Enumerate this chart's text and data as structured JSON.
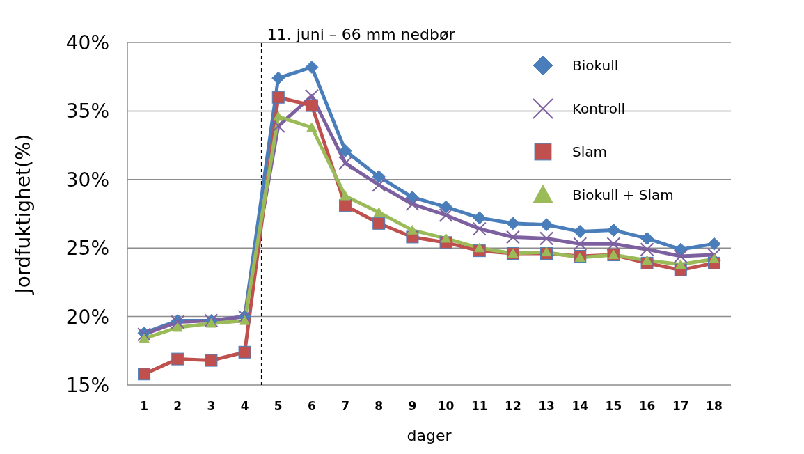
{
  "chart_data": {
    "type": "line",
    "xlabel": "dager",
    "ylabel": "Jordfuktighet(%)",
    "x": [
      1,
      2,
      3,
      4,
      5,
      6,
      7,
      8,
      9,
      10,
      11,
      12,
      13,
      14,
      15,
      16,
      17,
      18
    ],
    "xlim": [
      0.5,
      18.5
    ],
    "xticks": [
      1,
      2,
      3,
      4,
      5,
      6,
      7,
      8,
      9,
      10,
      11,
      12,
      13,
      14,
      15,
      16,
      17,
      18
    ],
    "ylim": [
      15,
      40
    ],
    "yticks": [
      {
        "value": 15,
        "label": "15%"
      },
      {
        "value": 20,
        "label": "20%"
      },
      {
        "value": 25,
        "label": "25%"
      },
      {
        "value": 30,
        "label": "30%"
      },
      {
        "value": 35,
        "label": "35%"
      },
      {
        "value": 40,
        "label": "40%"
      }
    ],
    "grid": "y",
    "legend": "top right",
    "ref_lines": [
      {
        "axis": "x",
        "value": 4.5,
        "label": "11. juni – 66 mm nedbør",
        "color": "#000000",
        "line_style": "dashed"
      }
    ],
    "series": [
      {
        "name": "Biokull",
        "color": "#4a7ebb",
        "marker": "diamond",
        "values": [
          18.8,
          19.7,
          19.7,
          20.0,
          37.4,
          38.2,
          32.1,
          30.2,
          28.7,
          28.0,
          27.2,
          26.8,
          26.7,
          26.2,
          26.3,
          25.7,
          24.9,
          25.3
        ]
      },
      {
        "name": "Kontroll",
        "color": "#7d60a0",
        "marker": "cross",
        "values": [
          18.7,
          19.6,
          19.7,
          20.0,
          33.9,
          36.1,
          31.2,
          29.6,
          28.2,
          27.4,
          26.4,
          25.8,
          25.7,
          25.3,
          25.3,
          24.9,
          24.4,
          24.5
        ]
      },
      {
        "name": "Slam",
        "color": "#c0504d",
        "marker": "square",
        "values": [
          15.8,
          16.9,
          16.8,
          17.4,
          36.0,
          35.4,
          28.1,
          26.8,
          25.8,
          25.4,
          24.8,
          24.6,
          24.6,
          24.4,
          24.5,
          23.9,
          23.4,
          23.9
        ]
      },
      {
        "name": "Biokull + Slam",
        "color": "#9bbb59",
        "marker": "triangle",
        "values": [
          18.4,
          19.2,
          19.5,
          19.7,
          34.6,
          33.8,
          28.8,
          27.6,
          26.3,
          25.7,
          25.0,
          24.6,
          24.7,
          24.3,
          24.5,
          24.1,
          23.8,
          24.2
        ]
      }
    ]
  }
}
